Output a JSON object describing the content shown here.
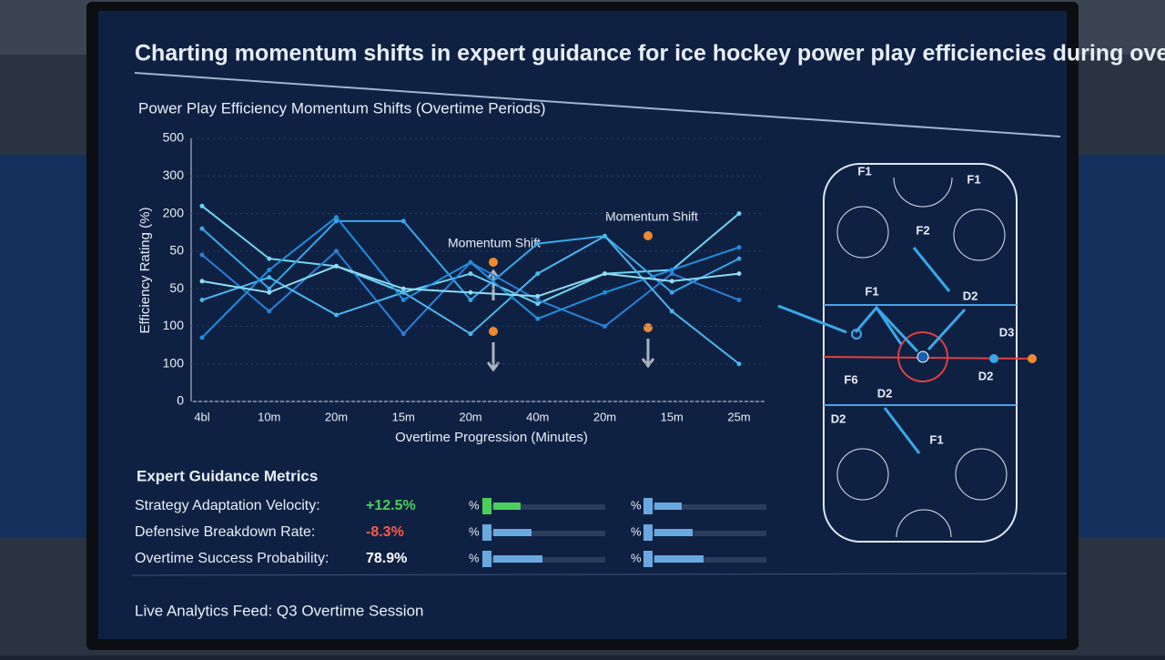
{
  "header": {
    "title": "Charting momentum shifts in expert guidance for ice hockey power play efficiencies during overtime p."
  },
  "chart_data": {
    "type": "line",
    "title": "Power Play Efficiency Momentum Shifts (Overtime Periods)",
    "x_label": "Overtime Progression (Minutes)",
    "y_label": "Efficiency Rating (%)",
    "categories": [
      "4bl",
      "10m",
      "20m",
      "15m",
      "20m",
      "40m",
      "20m",
      "15m",
      "25m"
    ],
    "ylim": [
      0,
      7
    ],
    "yticks": [
      {
        "value": 0,
        "label": "0"
      },
      {
        "value": 1,
        "label": "100"
      },
      {
        "value": 2,
        "label": "100"
      },
      {
        "value": 3,
        "label": "50"
      },
      {
        "value": 4,
        "label": "50"
      },
      {
        "value": 5,
        "label": "200"
      },
      {
        "value": 6,
        "label": "300"
      },
      {
        "value": 7,
        "label": "500"
      }
    ],
    "grid": true,
    "annotations": [
      "Momentum Shift",
      "Momentum Shift"
    ],
    "series": [
      {
        "color": "#6fd3f0",
        "values": [
          5.2,
          3.8,
          3.6,
          2.9,
          3.4,
          2.6,
          3.4,
          3.5,
          5.0
        ]
      },
      {
        "color": "#3aa8e8",
        "values": [
          4.6,
          3.0,
          4.8,
          4.8,
          2.7,
          4.2,
          4.4,
          2.9,
          3.8
        ]
      },
      {
        "color": "#2b7fd6",
        "values": [
          3.9,
          2.4,
          4.0,
          1.8,
          3.7,
          2.7,
          2.0,
          3.4,
          2.7
        ]
      },
      {
        "color": "#4bb6ee",
        "values": [
          2.7,
          3.3,
          2.3,
          2.9,
          1.8,
          3.4,
          4.4,
          2.4,
          1.0
        ]
      },
      {
        "color": "#1f8fe0",
        "values": [
          1.7,
          3.5,
          4.9,
          2.7,
          3.7,
          2.2,
          2.9,
          3.5,
          4.1
        ]
      },
      {
        "color": "#8fdcf5",
        "values": [
          3.2,
          2.9,
          3.6,
          3.0,
          2.9,
          2.8,
          3.4,
          3.2,
          3.4
        ]
      }
    ]
  },
  "metrics": {
    "title": "Expert Guidance Metrics",
    "rows": [
      [
        "Strategy Adaptation Velocity:",
        "+12.5%",
        "%",
        "%"
      ],
      [
        "Defensive Breakdown Rate:",
        "-8.3%",
        "%",
        "%"
      ],
      [
        "Overtime Success Probability:",
        "78.9%",
        "%",
        "%"
      ]
    ]
  },
  "rink": {
    "labels": [
      "F1",
      "F1",
      "F2",
      "F1",
      "D2",
      "D3",
      "D2",
      "F6",
      "D2",
      "D2",
      "F1"
    ]
  },
  "footer": "Live Analytics Feed: Q3 Overtime Session"
}
